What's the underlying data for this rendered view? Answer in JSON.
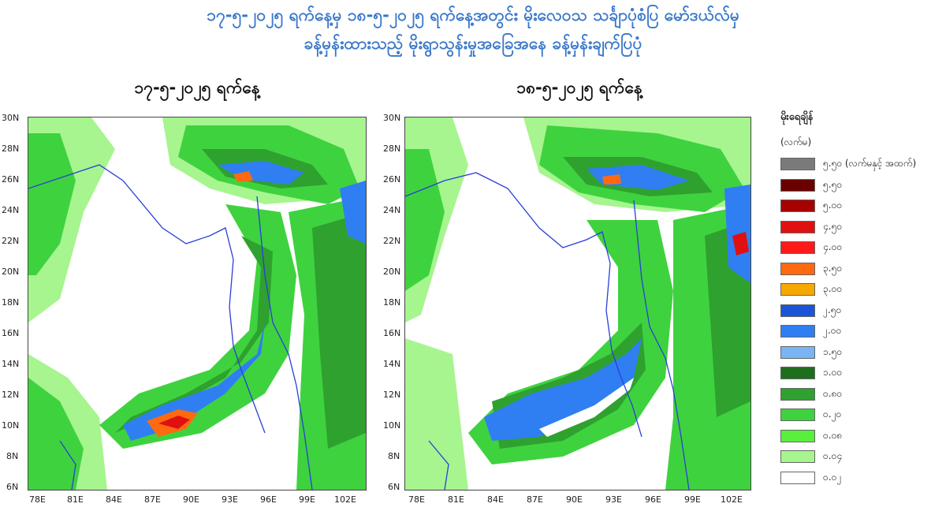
{
  "title_line1": "၁၇-၅-၂၀၂၅ ရက်နေ့မှ ၁၈-၅-၂၀၂၅ ရက်နေ့အတွင်း မိုးလေဝသ သင်္ချာပုံစံပြ မော်ဒယ်လ်မှ",
  "title_line2": "ခန့်မှန်းထားသည့် မိုးရွာသွန်းမှုအခြေအနေ ခန့်မှန်းချက်ပြပုံ",
  "panels": [
    {
      "label": "၁၇-၅-၂၀၂၅ ရက်နေ့",
      "lat_labels": [
        "30N",
        "28N",
        "26N",
        "24N",
        "22N",
        "20N",
        "18N",
        "16N",
        "14N",
        "12N",
        "10N",
        "8N",
        "6N"
      ],
      "lon_labels": [
        "78E",
        "81E",
        "84E",
        "87E",
        "90E",
        "93E",
        "96E",
        "99E",
        "102E"
      ]
    },
    {
      "label": "၁၈-၅-၂၀၂၅ ရက်နေ့",
      "lat_labels": [
        "30N",
        "28N",
        "26N",
        "24N",
        "22N",
        "20N",
        "18N",
        "16N",
        "14N",
        "12N",
        "10N",
        "8N",
        "6N"
      ],
      "lon_labels": [
        "78E",
        "81E",
        "84E",
        "87E",
        "90E",
        "93E",
        "96E",
        "99E",
        "102E"
      ]
    }
  ],
  "legend": {
    "title": "မိုးရေချိန်",
    "unit": "(လက်မ)",
    "items": [
      {
        "label": "၅.၅၀ (လက်မနှင့် အထက်)",
        "color": "#7a7a7a"
      },
      {
        "label": "၅.၅၀",
        "color": "#6b0000"
      },
      {
        "label": "၅.၀၀",
        "color": "#a60000"
      },
      {
        "label": "၄.၅၀",
        "color": "#e01010"
      },
      {
        "label": "၄.၀၀",
        "color": "#ff1a1a"
      },
      {
        "label": "၃.၅၀",
        "color": "#ff6a10"
      },
      {
        "label": "၃.၀၀",
        "color": "#f5a800"
      },
      {
        "label": "၂.၅၀",
        "color": "#1a55d8"
      },
      {
        "label": "၂.၀၀",
        "color": "#2f7ff2"
      },
      {
        "label": "၁.၅၀",
        "color": "#79b4f5"
      },
      {
        "label": "၁.၀၀",
        "color": "#1e6e1e"
      },
      {
        "label": "၀.၈၀",
        "color": "#2fa12f"
      },
      {
        "label": "၀.၂၀",
        "color": "#3fd23f"
      },
      {
        "label": "၀.၀၈",
        "color": "#5aef3a"
      },
      {
        "label": "၀.၀၄",
        "color": "#a6f58f"
      },
      {
        "label": "၀.၀၂",
        "color": "#ffffff"
      }
    ]
  }
}
